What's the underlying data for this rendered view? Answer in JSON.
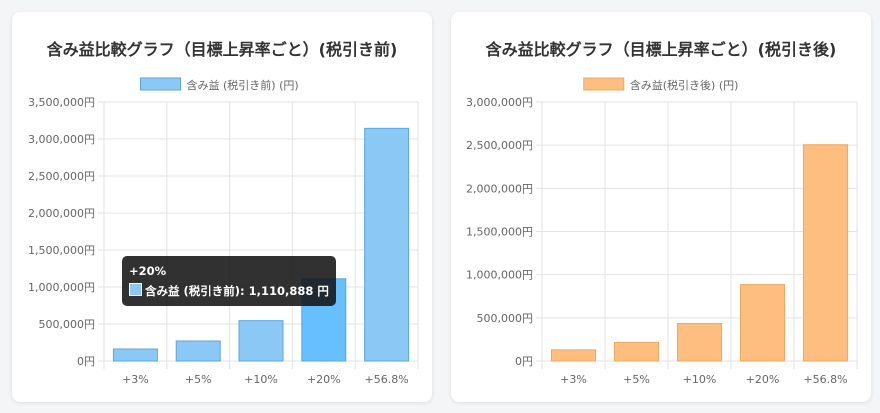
{
  "chart_data": [
    {
      "type": "bar",
      "title": "含み益比較グラフ（目標上昇率ごと）(税引き前)",
      "legend": "含み益 (税引き前) (円)",
      "legend_placement": "top",
      "categories": [
        "+3%",
        "+5%",
        "+10%",
        "+20%",
        "+56.8%"
      ],
      "values": [
        162000,
        270000,
        545000,
        1110888,
        3144000
      ],
      "ylim": [
        0,
        3500000
      ],
      "yticks": [
        "0円",
        "500,000円",
        "1,000,000円",
        "1,500,000円",
        "2,000,000円",
        "2,500,000円",
        "3,000,000円",
        "3,500,000円"
      ],
      "grid": true,
      "color": "#8cc8f5",
      "highlight_color": "#66bfff",
      "border_color": "#5aa7dc",
      "tooltip": {
        "title": "+20%",
        "label": "含み益 (税引き前): 1,110,888 円"
      }
    },
    {
      "type": "bar",
      "title": "含み益比較グラフ（目標上昇率ごと）(税引き後)",
      "legend": "含み益(税引き後) (円)",
      "legend_placement": "top",
      "categories": [
        "+3%",
        "+5%",
        "+10%",
        "+20%",
        "+56.8%"
      ],
      "values": [
        129000,
        215000,
        434000,
        885000,
        2505000
      ],
      "ylim": [
        0,
        3000000
      ],
      "yticks": [
        "0円",
        "500,000円",
        "1,000,000円",
        "1,500,000円",
        "2,000,000円",
        "2,500,000円",
        "3,000,000円"
      ],
      "grid": true,
      "color": "#fdbe7f",
      "border_color": "#f0a860"
    }
  ]
}
